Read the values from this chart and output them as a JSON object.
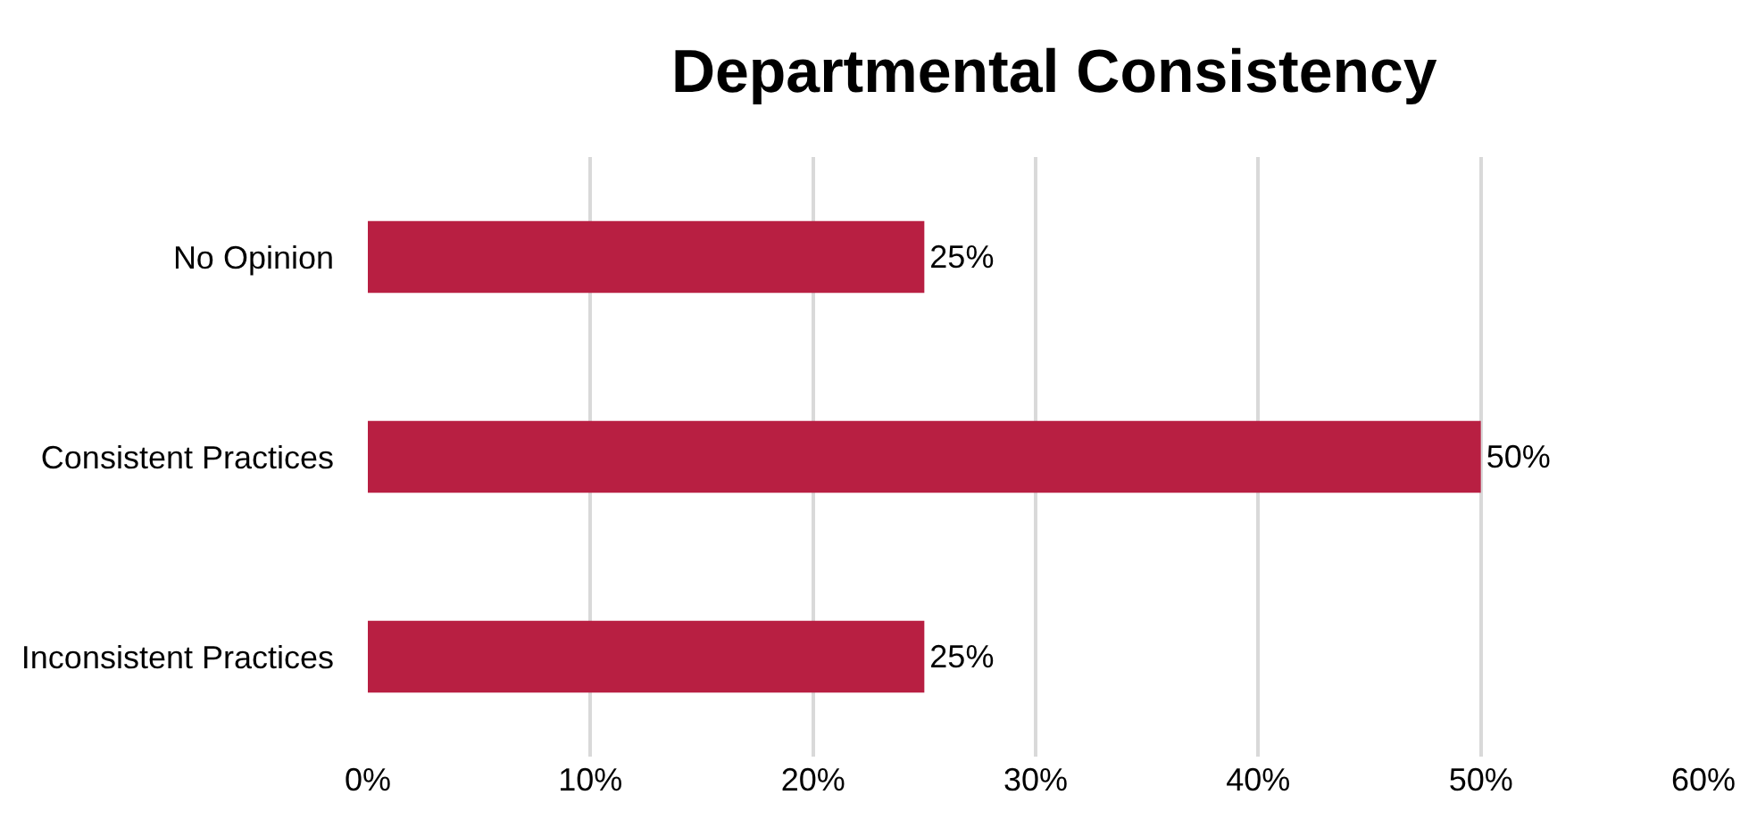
{
  "chart_data": {
    "type": "bar",
    "orientation": "horizontal",
    "title": "Departmental Consistency",
    "categories": [
      "No Opinion",
      "Consistent Practices",
      "Inconsistent Practices"
    ],
    "values": [
      25,
      50,
      25
    ],
    "color": "#b81f42",
    "value_labels": [
      "25%",
      "50%",
      "25%"
    ],
    "xlim": [
      0,
      60
    ],
    "xticks": [
      {
        "value": 0,
        "label": "0%"
      },
      {
        "value": 10,
        "label": "10%"
      },
      {
        "value": 20,
        "label": "20%"
      },
      {
        "value": 30,
        "label": "30%"
      },
      {
        "value": 40,
        "label": "40%"
      },
      {
        "value": 50,
        "label": "50%"
      },
      {
        "value": 60,
        "label": "60%"
      }
    ],
    "grid": "x"
  }
}
